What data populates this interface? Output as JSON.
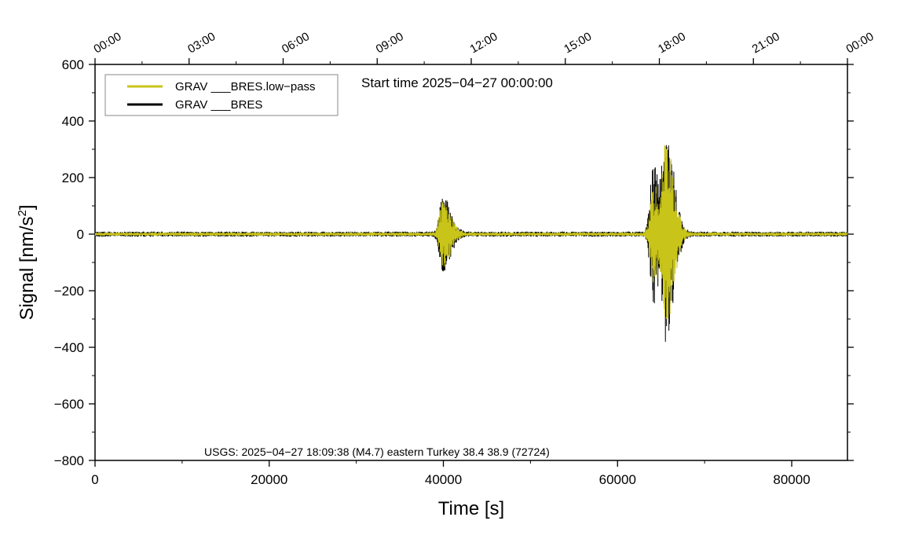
{
  "chart_data": {
    "type": "line",
    "xlabel": "Time [s]",
    "ylabel_main": "Signal [nm/s",
    "ylabel_sup": "2",
    "ylabel_end": "]",
    "xlim": [
      0,
      86400
    ],
    "ylim": [
      -800,
      600
    ],
    "x_ticks": [
      0,
      20000,
      40000,
      60000,
      80000
    ],
    "y_ticks": [
      -800,
      -600,
      -400,
      -200,
      0,
      200,
      400,
      600
    ],
    "y_tick_labels": [
      "−800",
      "−600",
      "−400",
      "−200",
      "0",
      "200",
      "400",
      "600"
    ],
    "x_tick_labels": [
      "0",
      "20000",
      "40000",
      "60000",
      "80000"
    ],
    "top_ticks": [
      0,
      10800,
      21600,
      32400,
      43200,
      54000,
      64800,
      75600,
      86400
    ],
    "top_tick_labels": [
      "00:00",
      "03:00",
      "06:00",
      "09:00",
      "12:00",
      "15:00",
      "18:00",
      "21:00",
      "00:00"
    ],
    "annotation_start": "Start time 2025−04−27 00:00:00",
    "annotation_event": "USGS: 2025−04−27 18:09:38 (M4.7) eastern Turkey 38.4 38.9 (72724)",
    "grid": false,
    "legend_position": "top-left",
    "series": [
      {
        "name": "GRAV ___BRES.low−pass",
        "color": "#c8c41a",
        "background_amplitude": 6,
        "events": [
          {
            "t": 39900,
            "peak_pos": 115,
            "peak_neg": -110
          },
          {
            "t": 64100,
            "peak_pos": 150,
            "peak_neg": -170
          },
          {
            "t": 65600,
            "peak_pos": 300,
            "peak_neg": -300
          }
        ]
      },
      {
        "name": "GRAV ___BRES",
        "color": "#000000",
        "background_amplitude": 9,
        "events": [
          {
            "t": 39900,
            "peak_pos": 125,
            "peak_neg": -130
          },
          {
            "t": 64100,
            "peak_pos": 230,
            "peak_neg": -240
          },
          {
            "t": 65600,
            "peak_pos": 315,
            "peak_neg": -325
          }
        ]
      }
    ]
  }
}
